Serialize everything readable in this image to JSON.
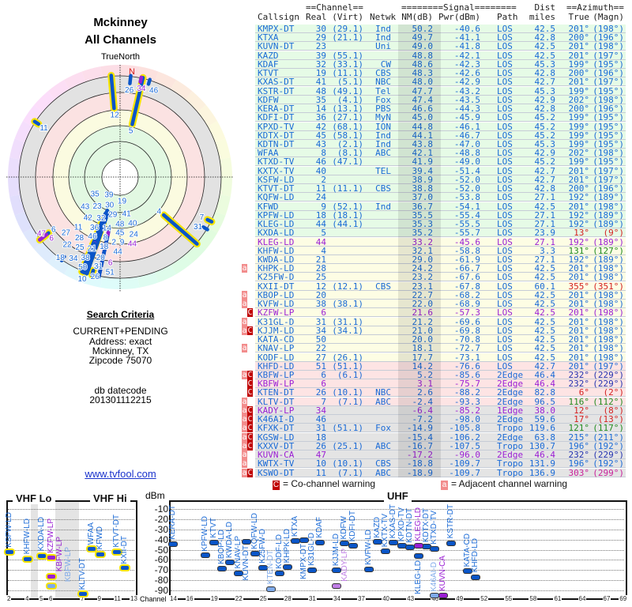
{
  "header": {
    "city": "Mckinney",
    "subtitle": "All Channels",
    "north_label": "TrueNorth",
    "north_marker": "N"
  },
  "search": {
    "heading": "Search Criteria",
    "lines": [
      "CURRENT+PENDING",
      "Address: exact",
      "Mckinney, TX",
      "Zipcode 75070"
    ],
    "db_label": "db datecode",
    "db_value": "201301112215",
    "link": "www.tvfool.com"
  },
  "table": {
    "group_headers": {
      "channel": "==Channel==",
      "signal": "========Signal========",
      "dist": "Dist",
      "azimuth": "==Azimuth=="
    },
    "columns": {
      "callsign": "Callsign",
      "real": "Real",
      "virt": "(Virt)",
      "netwk": "Netwk",
      "nm": "NM(dB)",
      "pwr": "Pwr(dBm)",
      "path": "Path",
      "dist": "miles",
      "true": "True",
      "magn": "(Magn)"
    },
    "rows": [
      {
        "cs": "KMPX-DT",
        "real": "30",
        "virt": "(29.1)",
        "net": "Ind",
        "nm": "50.2",
        "pwr": "-40.6",
        "path": "LOS",
        "dist": "42.5",
        "az": "201°",
        "mg": "(198°)",
        "bg": "g"
      },
      {
        "cs": "KTXA",
        "real": "29",
        "virt": "(21.1)",
        "net": "Ind",
        "nm": "49.7",
        "pwr": "-41.1",
        "path": "LOS",
        "dist": "42.8",
        "az": "200°",
        "mg": "(196°)",
        "bg": "g"
      },
      {
        "cs": "KUVN-DT",
        "real": "23",
        "virt": "",
        "net": "Uni",
        "nm": "49.0",
        "pwr": "-41.8",
        "path": "LOS",
        "dist": "42.5",
        "az": "201°",
        "mg": "(198°)",
        "bg": "g"
      },
      {
        "cs": "KAZD",
        "real": "39",
        "virt": "(55.1)",
        "net": "",
        "nm": "48.8",
        "pwr": "-42.1",
        "path": "LOS",
        "dist": "42.5",
        "az": "201°",
        "mg": "(197°)",
        "bg": "g"
      },
      {
        "cs": "KDAF",
        "real": "32",
        "virt": "(33.1)",
        "net": "CW",
        "nm": "48.6",
        "pwr": "-42.3",
        "path": "LOS",
        "dist": "45.3",
        "az": "199°",
        "mg": "(195°)",
        "bg": "g"
      },
      {
        "cs": "KTVT",
        "real": "19",
        "virt": "(11.1)",
        "net": "CBS",
        "nm": "48.3",
        "pwr": "-42.6",
        "path": "LOS",
        "dist": "42.8",
        "az": "200°",
        "mg": "(196°)",
        "bg": "g"
      },
      {
        "cs": "KXAS-DT",
        "real": "41",
        "virt": "(5.1)",
        "net": "NBC",
        "nm": "48.0",
        "pwr": "-42.9",
        "path": "LOS",
        "dist": "42.7",
        "az": "201°",
        "mg": "(197°)",
        "bg": "g"
      },
      {
        "cs": "KSTR-DT",
        "real": "48",
        "virt": "(49.1)",
        "net": "Tel",
        "nm": "47.7",
        "pwr": "-43.2",
        "path": "LOS",
        "dist": "45.3",
        "az": "199°",
        "mg": "(195°)",
        "bg": "g"
      },
      {
        "cs": "KDFW",
        "real": "35",
        "virt": "(4.1)",
        "net": "Fox",
        "nm": "47.4",
        "pwr": "-43.5",
        "path": "LOS",
        "dist": "42.9",
        "az": "202°",
        "mg": "(198°)",
        "bg": "g"
      },
      {
        "cs": "KERA-DT",
        "real": "14",
        "virt": "(13.1)",
        "net": "PBS",
        "nm": "46.6",
        "pwr": "-44.3",
        "path": "LOS",
        "dist": "42.8",
        "az": "200°",
        "mg": "(196°)",
        "bg": "g"
      },
      {
        "cs": "KDFI-DT",
        "real": "36",
        "virt": "(27.1)",
        "net": "MyN",
        "nm": "45.0",
        "pwr": "-45.9",
        "path": "LOS",
        "dist": "45.2",
        "az": "199°",
        "mg": "(195°)",
        "bg": "g"
      },
      {
        "cs": "KPXD-TV",
        "real": "42",
        "virt": "(68.1)",
        "net": "ION",
        "nm": "44.8",
        "pwr": "-46.1",
        "path": "LOS",
        "dist": "45.2",
        "az": "199°",
        "mg": "(195°)",
        "bg": "g"
      },
      {
        "cs": "KDTX-DT",
        "real": "45",
        "virt": "(58.1)",
        "net": "Ind",
        "nm": "44.1",
        "pwr": "-46.7",
        "path": "LOS",
        "dist": "45.2",
        "az": "199°",
        "mg": "(195°)",
        "bg": "g"
      },
      {
        "cs": "KDTN-DT",
        "real": "43",
        "virt": "(2.1)",
        "net": "Ind",
        "nm": "43.8",
        "pwr": "-47.0",
        "path": "LOS",
        "dist": "45.3",
        "az": "199°",
        "mg": "(195°)",
        "bg": "g"
      },
      {
        "cs": "WFAA",
        "real": "8",
        "virt": "(8.1)",
        "net": "ABC",
        "nm": "42.1",
        "pwr": "-48.8",
        "path": "LOS",
        "dist": "42.9",
        "az": "202°",
        "mg": "(198°)",
        "bg": "g"
      },
      {
        "cs": "KTXD-TV",
        "real": "46",
        "virt": "(47.1)",
        "net": "",
        "nm": "41.9",
        "pwr": "-49.0",
        "path": "LOS",
        "dist": "45.2",
        "az": "199°",
        "mg": "(195°)",
        "bg": "g"
      },
      {
        "cs": "KXTX-TV",
        "real": "40",
        "virt": "",
        "net": "TEL",
        "nm": "39.4",
        "pwr": "-51.4",
        "path": "LOS",
        "dist": "42.7",
        "az": "201°",
        "mg": "(197°)",
        "bg": "g"
      },
      {
        "cs": "KSFW-LD",
        "real": "2",
        "virt": "",
        "net": "",
        "nm": "38.9",
        "pwr": "-52.0",
        "path": "LOS",
        "dist": "42.7",
        "az": "201°",
        "mg": "(197°)",
        "bg": "g"
      },
      {
        "cs": "KTVT-DT",
        "real": "11",
        "virt": "(11.1)",
        "net": "CBS",
        "nm": "38.8",
        "pwr": "-52.0",
        "path": "LOS",
        "dist": "42.8",
        "az": "200°",
        "mg": "(196°)",
        "bg": "g"
      },
      {
        "cs": "KQFW-LD",
        "real": "24",
        "virt": "",
        "net": "",
        "nm": "37.0",
        "pwr": "-53.8",
        "path": "LOS",
        "dist": "27.1",
        "az": "192°",
        "mg": "(189°)",
        "bg": "g"
      },
      {
        "cs": "KFWD",
        "real": "9",
        "virt": "(52.1)",
        "net": "Ind",
        "nm": "36.7",
        "pwr": "-54.1",
        "path": "LOS",
        "dist": "42.5",
        "az": "201°",
        "mg": "(198°)",
        "bg": "g"
      },
      {
        "cs": "KPFW-LD",
        "real": "18",
        "virt": "(18.1)",
        "net": "",
        "nm": "35.5",
        "pwr": "-55.4",
        "path": "LOS",
        "dist": "27.1",
        "az": "192°",
        "mg": "(189°)",
        "bg": "g"
      },
      {
        "cs": "KLEG-LD",
        "real": "44",
        "virt": "(44.1)",
        "net": "",
        "nm": "35.3",
        "pwr": "-55.5",
        "path": "LOS",
        "dist": "27.1",
        "az": "192°",
        "mg": "(189°)",
        "bg": "g"
      },
      {
        "cs": "KXDA-LD",
        "real": "5",
        "virt": "",
        "net": "",
        "nm": "35.2",
        "pwr": "-55.7",
        "path": "LOS",
        "dist": "23.9",
        "az": "13°",
        "mg": "(9°)",
        "bg": "g",
        "azc": "r"
      },
      {
        "cs": "KLEG-LD",
        "real": "44",
        "virt": "",
        "net": "",
        "nm": "33.2",
        "pwr": "-45.6",
        "path": "LOS",
        "dist": "27.1",
        "az": "192°",
        "mg": "(189°)",
        "bg": "y",
        "tone": "p"
      },
      {
        "cs": "KHFW-LD",
        "real": "4",
        "virt": "",
        "net": "",
        "nm": "32.1",
        "pwr": "-58.8",
        "path": "LOS",
        "dist": "3.3",
        "az": "131°",
        "mg": "(127°)",
        "bg": "y",
        "azc": "g"
      },
      {
        "cs": "KWDA-LD",
        "real": "21",
        "virt": "",
        "net": "",
        "nm": "29.0",
        "pwr": "-61.9",
        "path": "LOS",
        "dist": "27.1",
        "az": "192°",
        "mg": "(189°)",
        "bg": "y"
      },
      {
        "cs": "KHPK-LD",
        "real": "28",
        "virt": "",
        "net": "",
        "nm": "24.2",
        "pwr": "-66.7",
        "path": "LOS",
        "dist": "42.5",
        "az": "201°",
        "mg": "(198°)",
        "bg": "y",
        "flags": "a"
      },
      {
        "cs": "K25FW-D",
        "real": "25",
        "virt": "",
        "net": "",
        "nm": "23.2",
        "pwr": "-67.6",
        "path": "LOS",
        "dist": "42.5",
        "az": "201°",
        "mg": "(198°)",
        "bg": "y"
      },
      {
        "cs": "KXII-DT",
        "real": "12",
        "virt": "(12.1)",
        "net": "CBS",
        "nm": "23.1",
        "pwr": "-67.8",
        "path": "LOS",
        "dist": "60.1",
        "az": "355°",
        "mg": "(351°)",
        "bg": "y",
        "azc": "r"
      },
      {
        "cs": "KBOP-LD",
        "real": "20",
        "virt": "",
        "net": "",
        "nm": "22.7",
        "pwr": "-68.2",
        "path": "LOS",
        "dist": "42.5",
        "az": "201°",
        "mg": "(198°)",
        "bg": "y",
        "flags": "a"
      },
      {
        "cs": "KVFW-LD",
        "real": "38",
        "virt": "(38.1)",
        "net": "",
        "nm": "22.0",
        "pwr": "-68.9",
        "path": "LOS",
        "dist": "42.5",
        "az": "201°",
        "mg": "(198°)",
        "bg": "y",
        "flags": "a"
      },
      {
        "cs": "KZFW-LP",
        "real": "6",
        "virt": "",
        "net": "",
        "nm": "21.6",
        "pwr": "-57.3",
        "path": "LOS",
        "dist": "42.5",
        "az": "201°",
        "mg": "(198°)",
        "bg": "y",
        "tone": "p",
        "flags": "C"
      },
      {
        "cs": "K31GL-D",
        "real": "31",
        "virt": "(31.1)",
        "net": "",
        "nm": "21.2",
        "pwr": "-69.6",
        "path": "LOS",
        "dist": "42.5",
        "az": "201°",
        "mg": "(198°)",
        "bg": "y",
        "flags": "a"
      },
      {
        "cs": "KJJM-LD",
        "real": "34",
        "virt": "(34.1)",
        "net": "",
        "nm": "21.0",
        "pwr": "-69.8",
        "path": "LOS",
        "dist": "42.5",
        "az": "201°",
        "mg": "(198°)",
        "bg": "y",
        "flags": "aC"
      },
      {
        "cs": "KATA-CD",
        "real": "50",
        "virt": "",
        "net": "",
        "nm": "20.0",
        "pwr": "-70.8",
        "path": "LOS",
        "dist": "42.5",
        "az": "201°",
        "mg": "(198°)",
        "bg": "y"
      },
      {
        "cs": "KNAV-LP",
        "real": "22",
        "virt": "",
        "net": "",
        "nm": "18.1",
        "pwr": "-72.7",
        "path": "LOS",
        "dist": "42.5",
        "az": "201°",
        "mg": "(198°)",
        "bg": "y",
        "flags": "a"
      },
      {
        "cs": "KODF-LD",
        "real": "27",
        "virt": "(26.1)",
        "net": "",
        "nm": "17.7",
        "pwr": "-73.1",
        "path": "LOS",
        "dist": "42.5",
        "az": "201°",
        "mg": "(198°)",
        "bg": "y"
      },
      {
        "cs": "KHFD-LD",
        "real": "51",
        "virt": "(51.1)",
        "net": "",
        "nm": "14.2",
        "pwr": "-76.6",
        "path": "LOS",
        "dist": "42.7",
        "az": "201°",
        "mg": "(197°)",
        "bg": "k"
      },
      {
        "cs": "KBFW-LP",
        "real": "6",
        "virt": "(6.1)",
        "net": "",
        "nm": "5.2",
        "pwr": "-85.6",
        "path": "2Edge",
        "dist": "46.4",
        "az": "232°",
        "mg": "(229°)",
        "bg": "k",
        "azc": "d",
        "flags": "aC",
        "fade": true
      },
      {
        "cs": "KBFW-LP",
        "real": "6",
        "virt": "",
        "net": "",
        "nm": "3.1",
        "pwr": "-75.7",
        "path": "2Edge",
        "dist": "46.4",
        "az": "232°",
        "mg": "(229°)",
        "bg": "k",
        "tone": "p",
        "azc": "d",
        "flags": "C"
      },
      {
        "cs": "KTEN-DT",
        "real": "26",
        "virt": "(10.1)",
        "net": "NBC",
        "nm": "2.6",
        "pwr": "-88.2",
        "path": "2Edge",
        "dist": "82.8",
        "az": "6°",
        "mg": "(2°)",
        "bg": "k",
        "azc": "r",
        "flags": "C",
        "fade": true
      },
      {
        "cs": "KLTV-DT",
        "real": "7",
        "virt": "(7.1)",
        "net": "ABC",
        "nm": "-2.4",
        "pwr": "-93.3",
        "path": "2Edge",
        "dist": "96.5",
        "az": "116°",
        "mg": "(112°)",
        "bg": "k",
        "azc": "g",
        "flags": "a"
      },
      {
        "cs": "KADY-LP",
        "real": "34",
        "virt": "",
        "net": "",
        "nm": "-6.4",
        "pwr": "-85.2",
        "path": "1Edge",
        "dist": "38.0",
        "az": "12°",
        "mg": "(8°)",
        "bg": "x",
        "tone": "p",
        "azc": "r",
        "flags": "aC",
        "fade": true
      },
      {
        "cs": "K46AI-D",
        "real": "46",
        "virt": "",
        "net": "",
        "nm": "-7.2",
        "pwr": "-98.0",
        "path": "2Edge",
        "dist": "59.6",
        "az": "17°",
        "mg": "(13°)",
        "bg": "x",
        "azc": "r",
        "flags": "aC",
        "fade": true
      },
      {
        "cs": "KFXK-DT",
        "real": "31",
        "virt": "(51.1)",
        "net": "Fox",
        "nm": "-14.9",
        "pwr": "-105.8",
        "path": "Tropo",
        "dist": "119.6",
        "az": "121°",
        "mg": "(117°)",
        "bg": "x",
        "azc": "g",
        "flags": "aC"
      },
      {
        "cs": "KGSW-LD",
        "real": "18",
        "virt": "",
        "net": "",
        "nm": "-15.4",
        "pwr": "-106.2",
        "path": "2Edge",
        "dist": "63.8",
        "az": "215°",
        "mg": "(211°)",
        "bg": "x",
        "flags": "aC"
      },
      {
        "cs": "KXXV-DT",
        "real": "26",
        "virt": "(25.1)",
        "net": "ABC",
        "nm": "-16.7",
        "pwr": "-107.5",
        "path": "Tropo",
        "dist": "130.7",
        "az": "196°",
        "mg": "(192°)",
        "bg": "x",
        "flags": "aC"
      },
      {
        "cs": "KUVN-CA",
        "real": "47",
        "virt": "",
        "net": "",
        "nm": "-17.2",
        "pwr": "-96.0",
        "path": "2Edge",
        "dist": "46.4",
        "az": "232°",
        "mg": "(229°)",
        "bg": "x",
        "tone": "p",
        "azc": "d",
        "flags": "a"
      },
      {
        "cs": "KWTX-TV",
        "real": "10",
        "virt": "(10.1)",
        "net": "CBS",
        "nm": "-18.8",
        "pwr": "-109.7",
        "path": "Tropo",
        "dist": "131.9",
        "az": "196°",
        "mg": "(192°)",
        "bg": "x",
        "flags": "a"
      },
      {
        "cs": "KSWO-DT",
        "real": "11",
        "virt": "(7.1)",
        "net": "ABC",
        "nm": "-18.9",
        "pwr": "-109.7",
        "path": "Tropo",
        "dist": "136.9",
        "az": "303°",
        "mg": "(299°)",
        "bg": "x",
        "azc": "m",
        "flags": "aC"
      }
    ]
  },
  "colors": {
    "blue": "#1a6ad6",
    "purple": "#9a1fd4",
    "mark": "#0a55c8",
    "highlight": "#f5e400",
    "cochannel": "#c00000",
    "adjacent": "#f28c8c"
  },
  "legend": {
    "co_badge": "C",
    "co_text": "= Co-channel warning",
    "adj_badge": "a",
    "adj_text": "= Adjacent channel warning"
  },
  "spectrum": {
    "vhf_lo_title": "VHF Lo",
    "vhf_hi_title": "VHF Hi",
    "uhf_title": "UHF",
    "unit": "dBm",
    "channel_label": "Channel",
    "db_ticks": [
      "-10",
      "-20",
      "-30",
      "-40",
      "-50",
      "-60",
      "-70",
      "-80",
      "-90"
    ],
    "vhf_channel_ticks": [
      "2",
      "4",
      "5",
      "6",
      "7",
      "9",
      "11",
      "13"
    ],
    "uhf_channel_ticks": [
      "14",
      "16",
      "19",
      "22",
      "25",
      "28",
      "31",
      "34",
      "37",
      "40",
      "43",
      "46",
      "49",
      "52",
      "55",
      "58",
      "61",
      "64",
      "67",
      "69"
    ]
  }
}
